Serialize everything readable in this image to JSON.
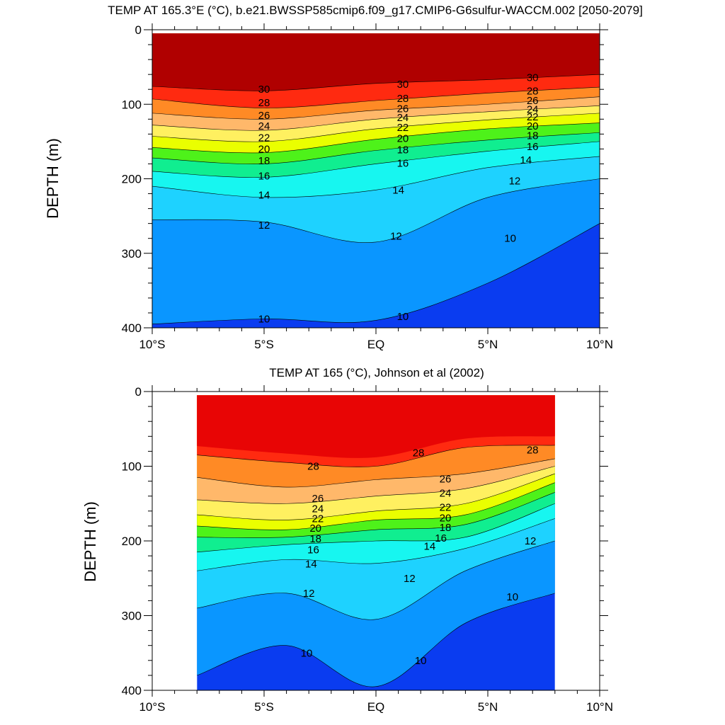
{
  "chart_data": [
    {
      "type": "contour",
      "title": "TEMP AT 165.3°E (°C), b.e21.BWSSP585cmip6.f09_g17.CMIP6-G6sulfur-WACCM.002 [2050-2079]",
      "ylabel": "DEPTH (m)",
      "xlim": [
        -10,
        10
      ],
      "ylim": [
        0,
        400
      ],
      "y_inverted": true,
      "x_ticks": [
        {
          "v": -10,
          "label": "10°S"
        },
        {
          "v": -5,
          "label": "5°S"
        },
        {
          "v": 0,
          "label": "EQ"
        },
        {
          "v": 5,
          "label": "5°N"
        },
        {
          "v": 10,
          "label": "10°N"
        }
      ],
      "y_ticks": [
        0,
        100,
        200,
        300,
        400
      ],
      "data_extent": [
        -10,
        10
      ],
      "surface_depth": 5,
      "isotherms": [
        {
          "level": 30,
          "x": [
            -10,
            -5,
            0,
            5,
            10
          ],
          "depth": [
            76,
            82,
            72,
            67,
            60
          ]
        },
        {
          "level": 28,
          "x": [
            -10,
            -5,
            0,
            5,
            10
          ],
          "depth": [
            93,
            105,
            95,
            85,
            77
          ]
        },
        {
          "level": 26,
          "x": [
            -10,
            -5,
            0,
            5,
            10
          ],
          "depth": [
            112,
            120,
            108,
            100,
            90
          ]
        },
        {
          "level": 24,
          "x": [
            -10,
            -5,
            0,
            5,
            10
          ],
          "depth": [
            128,
            135,
            120,
            110,
            102
          ]
        },
        {
          "level": 22,
          "x": [
            -10,
            -5,
            0,
            5,
            10
          ],
          "depth": [
            143,
            150,
            133,
            121,
            112
          ]
        },
        {
          "level": 20,
          "x": [
            -10,
            -5,
            0,
            5,
            10
          ],
          "depth": [
            158,
            165,
            147,
            133,
            125
          ]
        },
        {
          "level": 18,
          "x": [
            -10,
            -5,
            0,
            5,
            10
          ],
          "depth": [
            172,
            180,
            162,
            148,
            138
          ]
        },
        {
          "level": 16,
          "x": [
            -10,
            -5,
            0,
            5,
            10
          ],
          "depth": [
            190,
            198,
            180,
            163,
            150
          ]
        },
        {
          "level": 14,
          "x": [
            -10,
            -5,
            0,
            5,
            10
          ],
          "depth": [
            210,
            225,
            215,
            185,
            170
          ]
        },
        {
          "level": 12,
          "x": [
            -10,
            -5,
            0,
            5,
            10
          ],
          "depth": [
            255,
            258,
            285,
            225,
            200
          ]
        },
        {
          "level": 10,
          "x": [
            -10,
            -5,
            0,
            5,
            10
          ],
          "depth": [
            395,
            388,
            390,
            340,
            260
          ]
        }
      ],
      "contour_labels": [
        {
          "text": "30",
          "x": -5,
          "depth": 80
        },
        {
          "text": "28",
          "x": -5,
          "depth": 98
        },
        {
          "text": "26",
          "x": -5,
          "depth": 115
        },
        {
          "text": "24",
          "x": -5,
          "depth": 129
        },
        {
          "text": "22",
          "x": -5,
          "depth": 145
        },
        {
          "text": "20",
          "x": -5,
          "depth": 160
        },
        {
          "text": "18",
          "x": -5,
          "depth": 176
        },
        {
          "text": "16",
          "x": -5,
          "depth": 196
        },
        {
          "text": "14",
          "x": -5,
          "depth": 222
        },
        {
          "text": "12",
          "x": -5,
          "depth": 262
        },
        {
          "text": "10",
          "x": -5,
          "depth": 388
        },
        {
          "text": "30",
          "x": 1.2,
          "depth": 73
        },
        {
          "text": "28",
          "x": 1.2,
          "depth": 92
        },
        {
          "text": "26",
          "x": 1.2,
          "depth": 106
        },
        {
          "text": "24",
          "x": 1.2,
          "depth": 118
        },
        {
          "text": "22",
          "x": 1.2,
          "depth": 131
        },
        {
          "text": "20",
          "x": 1.2,
          "depth": 146
        },
        {
          "text": "18",
          "x": 1.2,
          "depth": 161
        },
        {
          "text": "16",
          "x": 1.2,
          "depth": 179
        },
        {
          "text": "14",
          "x": 1.0,
          "depth": 215
        },
        {
          "text": "12",
          "x": 0.9,
          "depth": 277
        },
        {
          "text": "10",
          "x": 1.2,
          "depth": 385
        },
        {
          "text": "30",
          "x": 7,
          "depth": 64
        },
        {
          "text": "28",
          "x": 7,
          "depth": 82
        },
        {
          "text": "26",
          "x": 7,
          "depth": 95
        },
        {
          "text": "24",
          "x": 7,
          "depth": 107
        },
        {
          "text": "22",
          "x": 7,
          "depth": 117
        },
        {
          "text": "20",
          "x": 7,
          "depth": 129
        },
        {
          "text": "18",
          "x": 7,
          "depth": 142
        },
        {
          "text": "16",
          "x": 7,
          "depth": 157
        },
        {
          "text": "14",
          "x": 6.7,
          "depth": 175
        },
        {
          "text": "12",
          "x": 6.2,
          "depth": 203
        },
        {
          "text": "10",
          "x": 6.0,
          "depth": 280
        }
      ]
    },
    {
      "type": "contour",
      "title": "TEMP AT 165 (°C), Johnson et al (2002)",
      "ylabel": "DEPTH (m)",
      "xlim": [
        -10,
        10
      ],
      "ylim": [
        0,
        400
      ],
      "y_inverted": true,
      "x_ticks": [
        {
          "v": -10,
          "label": "10°S"
        },
        {
          "v": -5,
          "label": "5°S"
        },
        {
          "v": 0,
          "label": "EQ"
        },
        {
          "v": 5,
          "label": "5°N"
        },
        {
          "v": 10,
          "label": "10°N"
        }
      ],
      "y_ticks": [
        0,
        100,
        200,
        300,
        400
      ],
      "data_extent": [
        -8,
        8
      ],
      "surface_depth": 5,
      "isotherms": [
        {
          "level": 28,
          "x": [
            -8,
            -4,
            0,
            4,
            8
          ],
          "depth": [
            85,
            95,
            100,
            75,
            72
          ]
        },
        {
          "level": 26,
          "x": [
            -8,
            -4,
            0,
            4,
            8
          ],
          "depth": [
            115,
            128,
            118,
            110,
            90
          ]
        },
        {
          "level": 24,
          "x": [
            -8,
            -4,
            0,
            4,
            8
          ],
          "depth": [
            145,
            150,
            140,
            130,
            100
          ]
        },
        {
          "level": 22,
          "x": [
            -8,
            -4,
            0,
            4,
            8
          ],
          "depth": [
            165,
            172,
            160,
            150,
            110
          ]
        },
        {
          "level": 20,
          "x": [
            -8,
            -4,
            0,
            4,
            8
          ],
          "depth": [
            180,
            185,
            172,
            165,
            122
          ]
        },
        {
          "level": 18,
          "x": [
            -8,
            -4,
            0,
            4,
            8
          ],
          "depth": [
            195,
            195,
            185,
            178,
            135
          ]
        },
        {
          "level": 16,
          "x": [
            -8,
            -4,
            0,
            4,
            8
          ],
          "depth": [
            215,
            205,
            200,
            195,
            150
          ]
        },
        {
          "level": 14,
          "x": [
            -8,
            -4,
            0,
            4,
            8
          ],
          "depth": [
            240,
            225,
            230,
            210,
            170
          ]
        },
        {
          "level": 12,
          "x": [
            -8,
            -4,
            0,
            4,
            8
          ],
          "depth": [
            290,
            270,
            305,
            240,
            200
          ]
        },
        {
          "level": 10,
          "x": [
            -8,
            -4,
            0,
            4,
            8
          ],
          "depth": [
            380,
            340,
            395,
            310,
            270
          ]
        }
      ],
      "contour_labels": [
        {
          "text": "28",
          "x": -2.8,
          "depth": 100
        },
        {
          "text": "26",
          "x": -2.6,
          "depth": 143
        },
        {
          "text": "24",
          "x": -2.6,
          "depth": 157
        },
        {
          "text": "22",
          "x": -2.6,
          "depth": 170
        },
        {
          "text": "20",
          "x": -2.7,
          "depth": 183
        },
        {
          "text": "18",
          "x": -2.7,
          "depth": 197
        },
        {
          "text": "16",
          "x": -2.8,
          "depth": 212
        },
        {
          "text": "14",
          "x": -2.9,
          "depth": 231
        },
        {
          "text": "12",
          "x": -3.0,
          "depth": 270
        },
        {
          "text": "10",
          "x": -3.1,
          "depth": 350
        },
        {
          "text": "28",
          "x": 1.9,
          "depth": 82
        },
        {
          "text": "26",
          "x": 3.1,
          "depth": 117
        },
        {
          "text": "24",
          "x": 3.1,
          "depth": 136
        },
        {
          "text": "22",
          "x": 3.1,
          "depth": 155
        },
        {
          "text": "20",
          "x": 3.1,
          "depth": 169
        },
        {
          "text": "18",
          "x": 3.1,
          "depth": 182
        },
        {
          "text": "16",
          "x": 2.9,
          "depth": 196
        },
        {
          "text": "14",
          "x": 2.4,
          "depth": 207
        },
        {
          "text": "12",
          "x": 1.5,
          "depth": 250
        },
        {
          "text": "10",
          "x": 2.0,
          "depth": 360
        },
        {
          "text": "28",
          "x": 7.0,
          "depth": 78
        },
        {
          "text": "12",
          "x": 6.9,
          "depth": 200
        },
        {
          "text": "10",
          "x": 6.1,
          "depth": 275
        }
      ]
    }
  ],
  "colors": {
    "levels": [
      8,
      9,
      10,
      11,
      12,
      13,
      14,
      15,
      16,
      17,
      18,
      19,
      20,
      21,
      22,
      23,
      24,
      25,
      26,
      27,
      28,
      29,
      30,
      31
    ],
    "fills": [
      "#0000d8",
      "#0a3cf0",
      "#0b64ff",
      "#0a96ff",
      "#00b4ff",
      "#1ed2ff",
      "#3ee8ff",
      "#17f6f0",
      "#15f0c0",
      "#10ee90",
      "#20f050",
      "#4ef21a",
      "#b4ff1e",
      "#eaff00",
      "#ffff3a",
      "#fff060",
      "#ffd068",
      "#ffb86a",
      "#ffa255",
      "#ff8a25",
      "#ff5a1c",
      "#ff2a10",
      "#e80505",
      "#b00000"
    ]
  }
}
